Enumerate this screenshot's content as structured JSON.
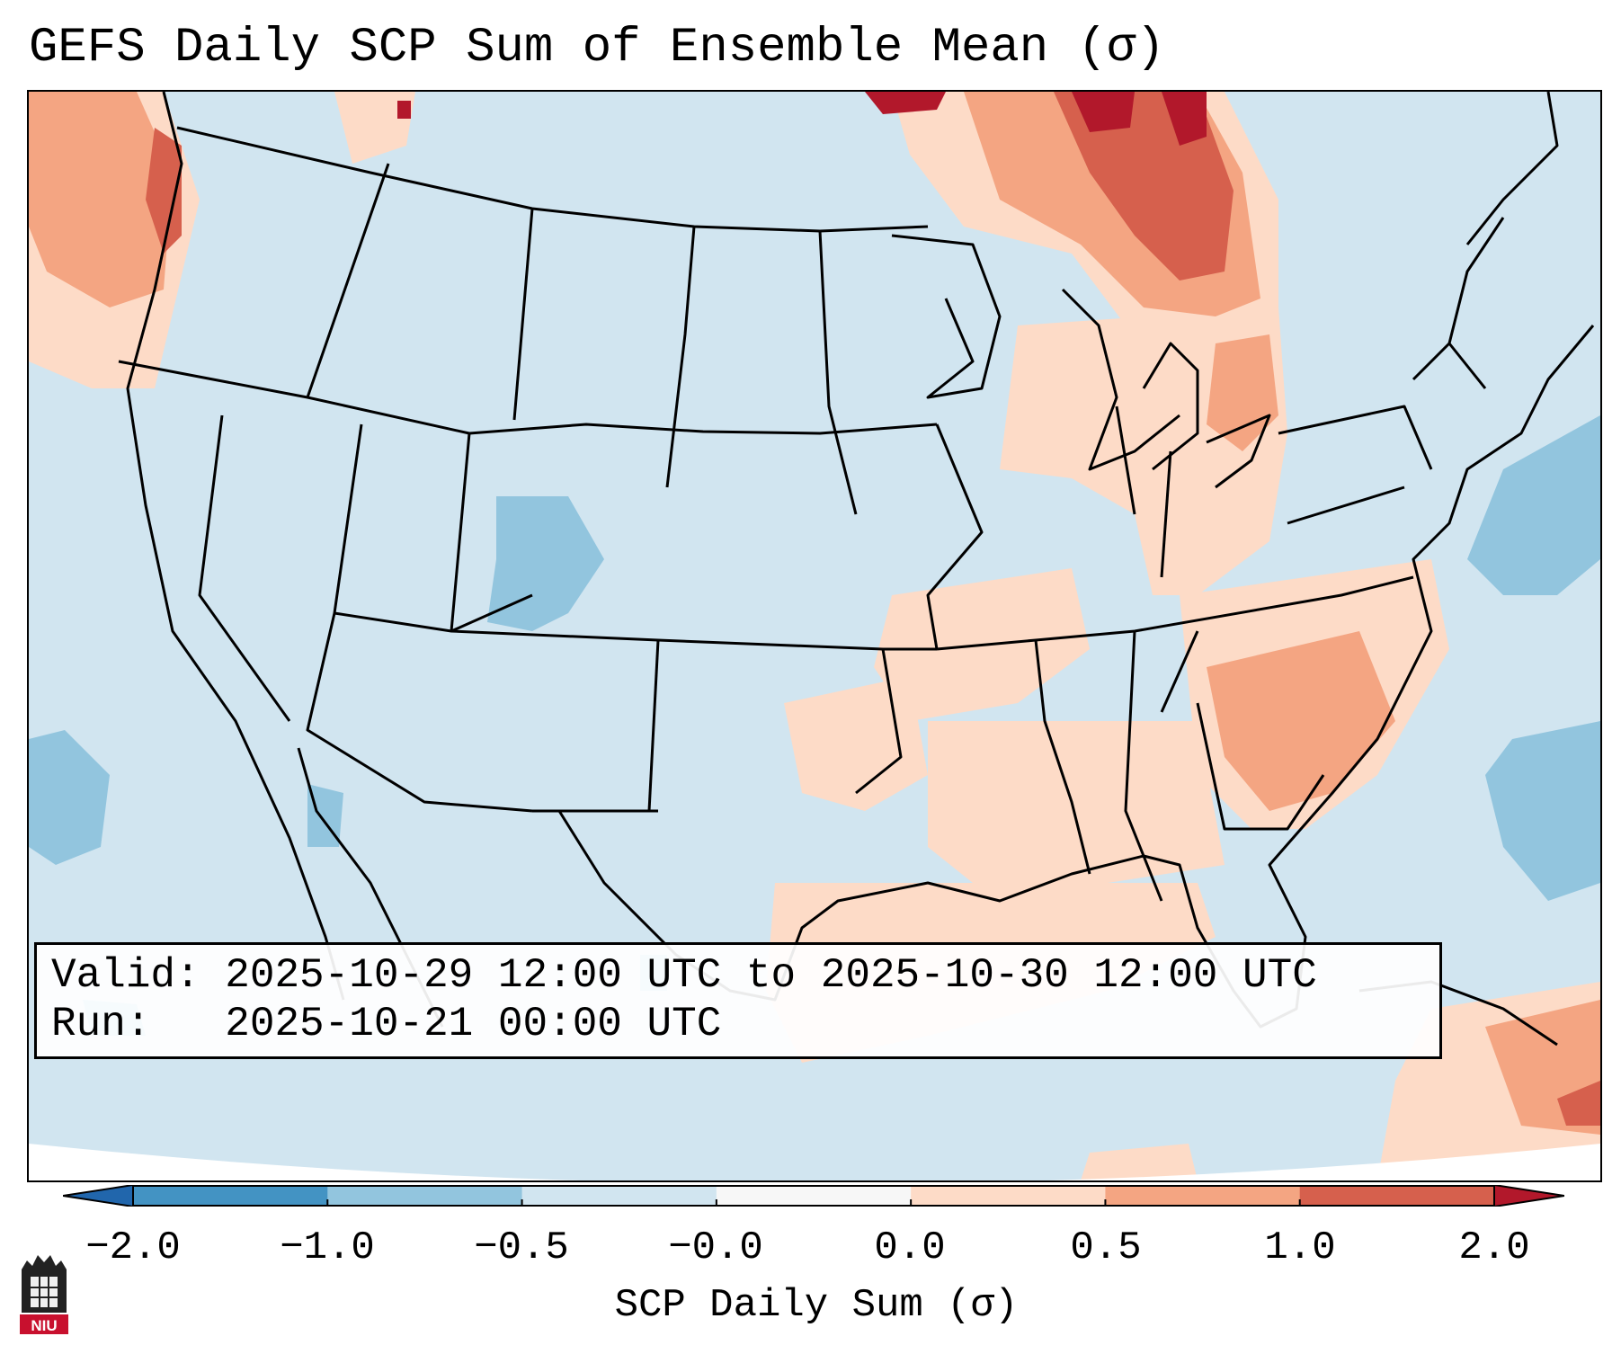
{
  "title": "GEFS Daily SCP Sum of Ensemble Mean (σ)",
  "info": {
    "valid": "Valid: 2025-10-29 12:00 UTC to 2025-10-30 12:00 UTC",
    "run": "Run:   2025-10-21 00:00 UTC"
  },
  "colorbar": {
    "label": "SCP Daily Sum (σ)",
    "ticks": [
      "−2.0",
      "−1.0",
      "−0.5",
      "−0.0",
      "0.0",
      "0.5",
      "1.0",
      "2.0"
    ],
    "bins": [
      {
        "range": "−2.0 to −1.0",
        "color": "#4393c3"
      },
      {
        "range": "−1.0 to −0.5",
        "color": "#92c5de"
      },
      {
        "range": "−0.5 to −0.0",
        "color": "#d1e5f0"
      },
      {
        "range": "−0.0 to 0.0",
        "color": "#f7f7f7"
      },
      {
        "range": "0.0 to 0.5",
        "color": "#fddbc7"
      },
      {
        "range": "0.5 to 1.0",
        "color": "#f4a582"
      },
      {
        "range": "1.0 to 2.0",
        "color": "#d6604d"
      }
    ],
    "under_color": "#2166ac",
    "over_color": "#b2182b"
  },
  "logo": {
    "text": "NIU"
  }
}
